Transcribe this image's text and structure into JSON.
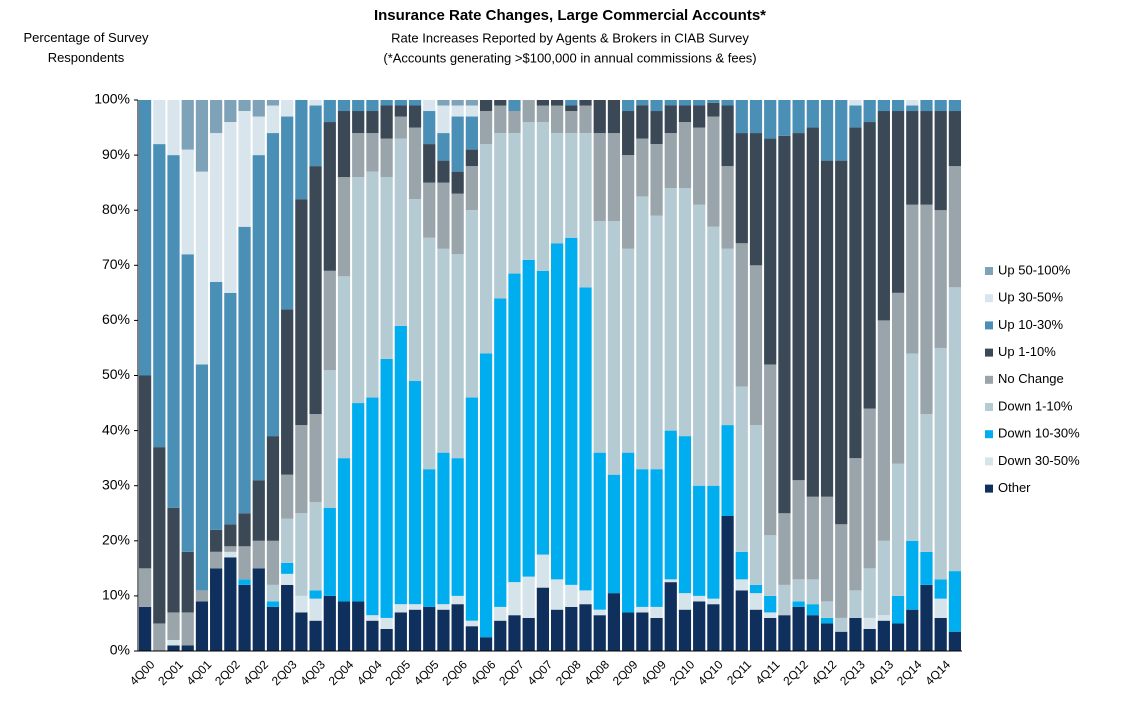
{
  "chart_data": {
    "type": "stacked_bar",
    "title": "Insurance Rate Changes, Large Commercial Accounts*",
    "subtitle": "Rate Increases Reported by Agents & Brokers in CIAB Survey",
    "note": "(*Accounts generating >$100,000 in annual commissions & fees)",
    "y_label": "Percentage of Survey Respondents",
    "categories": [
      "4Q00",
      null,
      "2Q01",
      null,
      "4Q01",
      null,
      "2Q02",
      null,
      "4Q02",
      null,
      "2Q03",
      null,
      "4Q03",
      null,
      "2Q04",
      null,
      "4Q04",
      null,
      "2Q05",
      null,
      "4Q05",
      null,
      "2Q06",
      null,
      "4Q06",
      null,
      "2Q07",
      null,
      "4Q07",
      null,
      "2Q08",
      null,
      "4Q08",
      null,
      "2Q09",
      null,
      "4Q09",
      null,
      "2Q10",
      null,
      "4Q10",
      null,
      "2Q11",
      null,
      "4Q11",
      null,
      "2Q12",
      null,
      "4Q12",
      null,
      "2Q13",
      null,
      "4Q13",
      null,
      "2Q14",
      null,
      "4Q14",
      null
    ],
    "ylim": [
      0,
      100
    ],
    "yticks": [
      {
        "value": 0,
        "label": "0%"
      },
      {
        "value": 10,
        "label": "10%"
      },
      {
        "value": 20,
        "label": "20%"
      },
      {
        "value": 30,
        "label": "30%"
      },
      {
        "value": 40,
        "label": "40%"
      },
      {
        "value": 50,
        "label": "50%"
      },
      {
        "value": 60,
        "label": "60%"
      },
      {
        "value": 70,
        "label": "70%"
      },
      {
        "value": 80,
        "label": "80%"
      },
      {
        "value": 90,
        "label": "90%"
      },
      {
        "value": 100,
        "label": "100%"
      }
    ],
    "legend": "right",
    "series": [
      {
        "name": "Other",
        "color": "#0f2f5c",
        "values": [
          8,
          0,
          1,
          1,
          9,
          15,
          17,
          12,
          15,
          8,
          12,
          7,
          5.5,
          10,
          9,
          9,
          5.5,
          4,
          7,
          7.5,
          8,
          7.5,
          8.5,
          4.5,
          2.5,
          5.5,
          6.5,
          6,
          11.5,
          7.5,
          8,
          8.5,
          6.5,
          10.5,
          7,
          7,
          6,
          12.5,
          7.5,
          9,
          8.5,
          24.5,
          11,
          7.5,
          6,
          6.5,
          8,
          6.5,
          5,
          3.5,
          6,
          4,
          5.5,
          5,
          7.5,
          12,
          6,
          3.5
        ]
      },
      {
        "name": "Down 30-50%",
        "color": "#d5e3ea",
        "values": [
          0,
          0,
          1,
          0,
          0,
          0,
          1,
          0,
          0,
          0,
          2,
          3,
          4,
          0,
          0,
          0,
          1,
          2,
          1.5,
          1,
          0,
          1,
          1.5,
          1,
          0,
          2.5,
          6,
          7.5,
          6,
          5.5,
          4,
          2.5,
          1,
          0,
          0,
          1,
          2,
          0.5,
          3,
          1,
          1,
          0,
          2,
          3,
          1,
          0,
          0,
          0,
          0,
          0,
          0,
          2,
          1,
          0,
          0,
          0,
          3.5,
          0
        ]
      },
      {
        "name": "Down 10-30%",
        "color": "#00aeef",
        "values": [
          0,
          0,
          0,
          0,
          0,
          0,
          0,
          1,
          0,
          1,
          2,
          0,
          1.5,
          16,
          26,
          36,
          39.5,
          47,
          50.5,
          40.5,
          25,
          27.5,
          25,
          40.5,
          51.5,
          56,
          56,
          57.5,
          51.5,
          61,
          63,
          55,
          28.5,
          21.5,
          29,
          25,
          25,
          27,
          28.5,
          20,
          20.5,
          16.5,
          5,
          1.5,
          3,
          0,
          1,
          2,
          1,
          0,
          0,
          0,
          0,
          5,
          12.5,
          6,
          3.5,
          11
        ]
      },
      {
        "name": "Down 1-10%",
        "color": "#b5cbd4",
        "values": [
          0,
          0,
          0,
          0,
          0,
          0,
          0,
          0,
          0,
          3,
          8,
          15,
          16,
          25,
          33,
          41,
          41,
          33,
          34,
          33,
          42,
          37,
          37,
          34,
          38,
          30,
          25.5,
          25,
          27,
          20,
          19,
          28,
          42,
          46,
          37,
          49.5,
          46,
          44,
          45,
          51,
          47,
          32,
          30,
          29,
          11,
          5.5,
          4,
          4.5,
          3,
          2.5,
          5,
          9,
          13.5,
          24,
          34,
          25,
          42,
          51.5
        ]
      },
      {
        "name": "No Change",
        "color": "#99a4ab",
        "values": [
          7,
          5,
          5,
          6,
          2,
          3,
          1,
          6,
          5,
          8,
          8,
          16,
          16,
          18,
          18,
          8,
          7,
          7,
          4,
          13,
          10,
          12,
          11,
          8,
          6,
          5,
          4,
          4,
          3,
          5,
          4,
          5,
          16,
          16,
          17,
          10.5,
          13,
          10,
          12,
          14,
          20,
          15,
          26,
          29,
          31,
          13,
          18,
          15,
          19,
          17,
          24,
          29,
          40,
          31,
          27,
          38,
          25,
          22
        ]
      },
      {
        "name": "Up 1-10%",
        "color": "#3b4957",
        "values": [
          35,
          32,
          19,
          11,
          0,
          4,
          4,
          6,
          11,
          19,
          30,
          41,
          45,
          27,
          12,
          4,
          4,
          6,
          2,
          4,
          7,
          4,
          4,
          3,
          2,
          1,
          0,
          0,
          1,
          1,
          1,
          1,
          6,
          6,
          8,
          6,
          6,
          5,
          3,
          4,
          2.5,
          11,
          20,
          24,
          41,
          68.5,
          63,
          67,
          61,
          66,
          60,
          52,
          38,
          33,
          17,
          17,
          18,
          10
        ]
      },
      {
        "name": "Up 10-30%",
        "color": "#4a8fb6",
        "values": [
          50,
          55,
          64,
          54,
          41,
          45,
          42,
          52,
          59,
          55,
          35,
          18,
          11,
          4,
          2,
          2,
          2,
          1,
          1,
          1,
          6,
          5,
          10,
          6,
          0,
          0,
          2,
          0,
          0,
          0,
          1,
          0,
          0,
          0,
          2,
          1,
          2,
          1,
          1,
          1,
          0.5,
          1,
          6,
          6,
          7,
          6.5,
          6,
          5,
          11,
          11,
          4,
          4,
          2,
          2,
          1,
          2,
          2,
          2
        ]
      },
      {
        "name": "Up 30-50%",
        "color": "#d8e5ed",
        "values": [
          0,
          8,
          10,
          19,
          35,
          27,
          31,
          21,
          7,
          5,
          3,
          0,
          1,
          0,
          0,
          0,
          0,
          0,
          0,
          0,
          2,
          5,
          2,
          2,
          0,
          0,
          0,
          0,
          0,
          0,
          0,
          0,
          0,
          0,
          0,
          0,
          0,
          0,
          0,
          0,
          0,
          0,
          0,
          0,
          0,
          0,
          0,
          0,
          0,
          0,
          1,
          0,
          0,
          0,
          1,
          0,
          0,
          0
        ]
      },
      {
        "name": "Up 50-100%",
        "color": "#7ea2b7",
        "values": [
          0,
          0,
          0,
          9,
          13,
          6,
          4,
          2,
          3,
          1,
          0,
          0,
          0,
          0,
          0,
          0,
          0,
          0,
          0,
          0,
          0,
          1,
          1,
          1,
          0,
          0,
          0,
          0,
          0,
          0,
          0,
          0,
          0,
          0,
          0,
          0,
          0,
          0,
          0,
          0,
          0,
          0,
          0,
          0,
          0,
          0,
          0,
          0,
          0,
          0,
          0,
          0,
          0,
          0,
          0,
          0,
          0,
          0
        ]
      }
    ]
  }
}
